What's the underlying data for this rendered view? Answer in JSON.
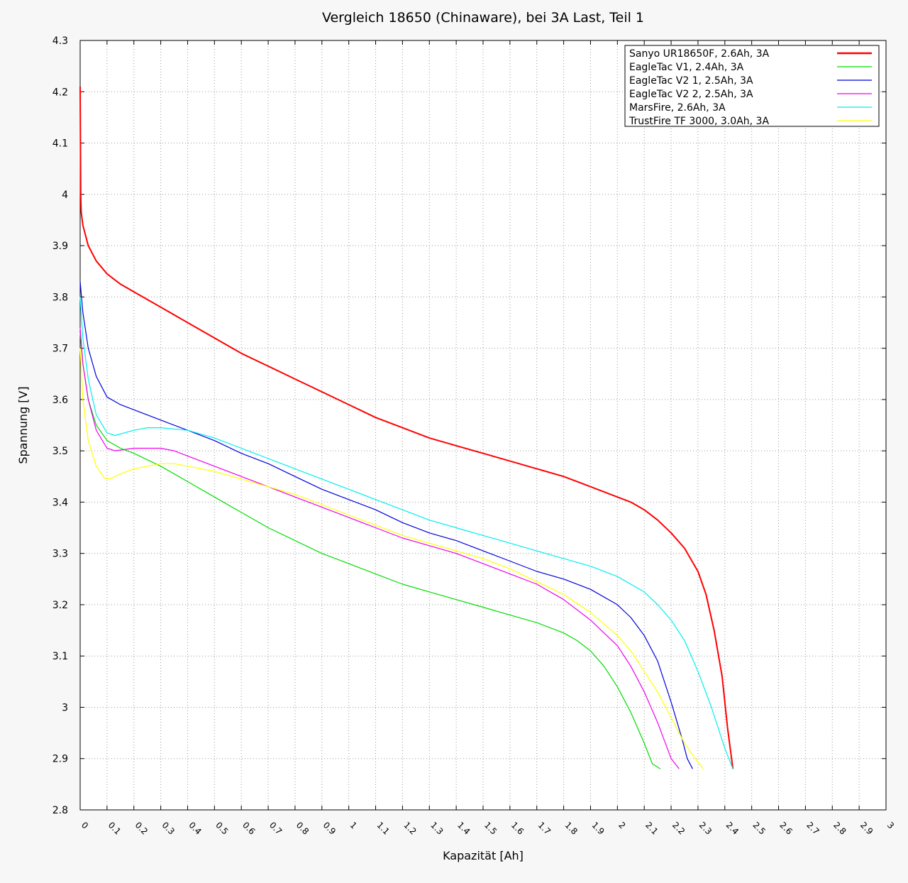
{
  "chart_data": {
    "type": "line",
    "title": "Vergleich 18650 (Chinaware), bei 3A Last, Teil 1",
    "xlabel": "Kapazität [Ah]",
    "ylabel": "Spannung [V]",
    "xlim": [
      0,
      3
    ],
    "ylim": [
      2.8,
      4.3
    ],
    "xticks": [
      "0",
      "0.1",
      "0.2",
      "0.3",
      "0.4",
      "0.5",
      "0.6",
      "0.7",
      "0.8",
      "0.9",
      "1",
      "1.1",
      "1.2",
      "1.3",
      "1.4",
      "1.5",
      "1.6",
      "1.7",
      "1.8",
      "1.9",
      "2",
      "2.1",
      "2.2",
      "2.3",
      "2.4",
      "2.5",
      "2.6",
      "2.7",
      "2.8",
      "2.9",
      "3"
    ],
    "yticks": [
      "2.8",
      "2.9",
      "3",
      "3.1",
      "3.2",
      "3.3",
      "3.4",
      "3.5",
      "3.6",
      "3.7",
      "3.8",
      "3.9",
      "4",
      "4.1",
      "4.2",
      "4.3"
    ],
    "grid": true,
    "legend_position": "top-right",
    "series": [
      {
        "name": "Sanyo UR18650F, 2.6Ah, 3A",
        "color": "#ff0000",
        "x": [
          0,
          0.002,
          0.004,
          0.01,
          0.03,
          0.06,
          0.1,
          0.15,
          0.2,
          0.3,
          0.4,
          0.5,
          0.6,
          0.7,
          0.8,
          0.9,
          1.0,
          1.1,
          1.2,
          1.3,
          1.4,
          1.5,
          1.6,
          1.7,
          1.8,
          1.9,
          2.0,
          2.05,
          2.1,
          2.15,
          2.2,
          2.25,
          2.3,
          2.33,
          2.36,
          2.39,
          2.41,
          2.43
        ],
        "y": [
          4.21,
          4.0,
          3.965,
          3.94,
          3.9,
          3.87,
          3.845,
          3.825,
          3.81,
          3.78,
          3.75,
          3.72,
          3.69,
          3.665,
          3.64,
          3.615,
          3.59,
          3.565,
          3.545,
          3.525,
          3.51,
          3.495,
          3.48,
          3.465,
          3.45,
          3.43,
          3.41,
          3.4,
          3.385,
          3.365,
          3.34,
          3.31,
          3.265,
          3.22,
          3.15,
          3.06,
          2.96,
          2.88
        ]
      },
      {
        "name": "EagleTac V1, 2.4Ah, 3A",
        "color": "#00dd00",
        "x": [
          0,
          0.01,
          0.03,
          0.06,
          0.1,
          0.15,
          0.2,
          0.3,
          0.4,
          0.5,
          0.6,
          0.7,
          0.8,
          0.9,
          1.0,
          1.1,
          1.2,
          1.3,
          1.4,
          1.5,
          1.6,
          1.7,
          1.8,
          1.85,
          1.9,
          1.95,
          2.0,
          2.05,
          2.1,
          2.13,
          2.16
        ],
        "y": [
          3.73,
          3.67,
          3.6,
          3.55,
          3.52,
          3.505,
          3.495,
          3.47,
          3.44,
          3.41,
          3.38,
          3.35,
          3.325,
          3.3,
          3.28,
          3.26,
          3.24,
          3.225,
          3.21,
          3.195,
          3.18,
          3.165,
          3.145,
          3.13,
          3.11,
          3.08,
          3.04,
          2.99,
          2.93,
          2.89,
          2.88
        ]
      },
      {
        "name": "EagleTac V2 1, 2.5Ah, 3A",
        "color": "#0000dd",
        "x": [
          0,
          0.01,
          0.03,
          0.06,
          0.1,
          0.15,
          0.2,
          0.3,
          0.4,
          0.5,
          0.6,
          0.7,
          0.8,
          0.9,
          1.0,
          1.1,
          1.2,
          1.3,
          1.4,
          1.5,
          1.6,
          1.7,
          1.8,
          1.9,
          2.0,
          2.05,
          2.1,
          2.15,
          2.2,
          2.24,
          2.26,
          2.28
        ],
        "y": [
          3.83,
          3.77,
          3.7,
          3.645,
          3.605,
          3.59,
          3.58,
          3.56,
          3.54,
          3.52,
          3.495,
          3.475,
          3.45,
          3.425,
          3.405,
          3.385,
          3.36,
          3.34,
          3.325,
          3.305,
          3.285,
          3.265,
          3.25,
          3.23,
          3.2,
          3.175,
          3.14,
          3.09,
          3.01,
          2.94,
          2.9,
          2.88
        ]
      },
      {
        "name": "EagleTac V2 2, 2.5Ah, 3A",
        "color": "#ee00ee",
        "x": [
          0,
          0.01,
          0.03,
          0.06,
          0.1,
          0.13,
          0.2,
          0.3,
          0.35,
          0.4,
          0.5,
          0.6,
          0.7,
          0.8,
          0.9,
          1.0,
          1.1,
          1.2,
          1.3,
          1.4,
          1.5,
          1.6,
          1.7,
          1.8,
          1.9,
          2.0,
          2.05,
          2.1,
          2.15,
          2.2,
          2.23
        ],
        "y": [
          3.74,
          3.67,
          3.6,
          3.54,
          3.505,
          3.5,
          3.505,
          3.505,
          3.5,
          3.49,
          3.47,
          3.45,
          3.43,
          3.41,
          3.39,
          3.37,
          3.35,
          3.33,
          3.315,
          3.3,
          3.28,
          3.26,
          3.24,
          3.21,
          3.17,
          3.12,
          3.08,
          3.03,
          2.97,
          2.9,
          2.88
        ]
      },
      {
        "name": "MarsFire, 2.6Ah, 3A",
        "color": "#00eeee",
        "x": [
          0,
          0.01,
          0.03,
          0.06,
          0.1,
          0.13,
          0.2,
          0.25,
          0.3,
          0.4,
          0.5,
          0.6,
          0.7,
          0.8,
          0.9,
          1.0,
          1.1,
          1.2,
          1.3,
          1.4,
          1.5,
          1.6,
          1.7,
          1.8,
          1.9,
          2.0,
          2.1,
          2.15,
          2.2,
          2.25,
          2.3,
          2.35,
          2.4,
          2.43
        ],
        "y": [
          3.8,
          3.72,
          3.64,
          3.57,
          3.535,
          3.53,
          3.54,
          3.545,
          3.545,
          3.54,
          3.525,
          3.505,
          3.485,
          3.465,
          3.445,
          3.425,
          3.405,
          3.385,
          3.365,
          3.35,
          3.335,
          3.32,
          3.305,
          3.29,
          3.275,
          3.255,
          3.225,
          3.2,
          3.17,
          3.13,
          3.07,
          3.0,
          2.92,
          2.88
        ]
      },
      {
        "name": "TrustFire TF 3000, 3.0Ah, 3A",
        "color": "#ffff00",
        "x": [
          0,
          0.01,
          0.03,
          0.06,
          0.09,
          0.11,
          0.15,
          0.2,
          0.25,
          0.3,
          0.35,
          0.4,
          0.5,
          0.6,
          0.7,
          0.8,
          0.9,
          1.0,
          1.1,
          1.2,
          1.3,
          1.4,
          1.5,
          1.6,
          1.7,
          1.8,
          1.9,
          2.0,
          2.05,
          2.1,
          2.15,
          2.2,
          2.25,
          2.29,
          2.32
        ],
        "y": [
          3.7,
          3.6,
          3.52,
          3.47,
          3.447,
          3.445,
          3.455,
          3.465,
          3.47,
          3.475,
          3.475,
          3.47,
          3.46,
          3.445,
          3.43,
          3.415,
          3.395,
          3.375,
          3.355,
          3.335,
          3.32,
          3.305,
          3.29,
          3.27,
          3.245,
          3.22,
          3.185,
          3.14,
          3.11,
          3.07,
          3.03,
          2.98,
          2.93,
          2.9,
          2.88
        ]
      }
    ]
  }
}
